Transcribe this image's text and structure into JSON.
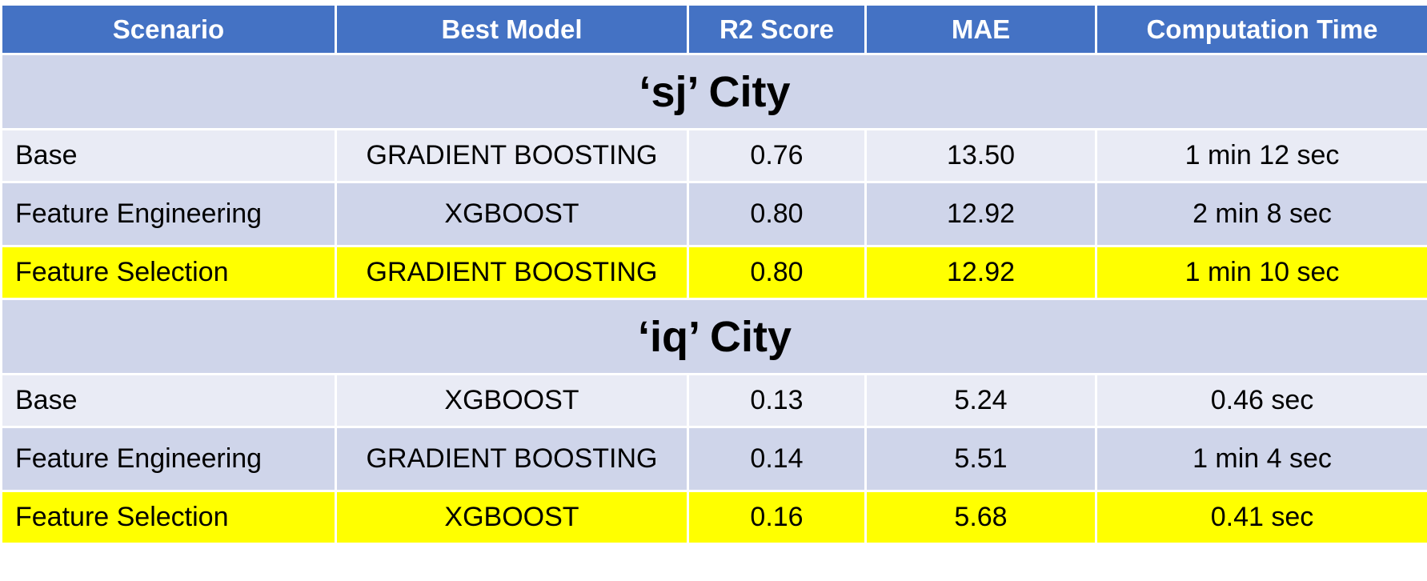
{
  "table": {
    "headers": [
      "Scenario",
      "Best Model",
      "R2 Score",
      "MAE",
      "Computation Time"
    ],
    "sections": [
      {
        "title": "‘sj’ City",
        "rows": [
          {
            "scenario": "Base",
            "model": "GRADIENT BOOSTING",
            "r2": "0.76",
            "mae": "13.50",
            "time": "1 min 12 sec"
          },
          {
            "scenario": "Feature Engineering",
            "model": "XGBOOST",
            "r2": "0.80",
            "mae": "12.92",
            "time": "2 min 8 sec"
          },
          {
            "scenario": "Feature Selection",
            "model": "GRADIENT BOOSTING",
            "r2": "0.80",
            "mae": "12.92",
            "time": "1 min 10 sec"
          }
        ]
      },
      {
        "title": "‘iq’ City",
        "rows": [
          {
            "scenario": "Base",
            "model": "XGBOOST",
            "r2": "0.13",
            "mae": "5.24",
            "time": "0.46 sec"
          },
          {
            "scenario": "Feature Engineering",
            "model": "GRADIENT BOOSTING",
            "r2": "0.14",
            "mae": "5.51",
            "time": "1 min 4 sec"
          },
          {
            "scenario": "Feature Selection",
            "model": "XGBOOST",
            "r2": "0.16",
            "mae": "5.68",
            "time": "0.41 sec"
          }
        ]
      }
    ]
  },
  "colors": {
    "header_bg": "#4472c4",
    "row_light": "#e9ebf5",
    "row_mid": "#cfd5ea",
    "highlight": "#ffff00"
  }
}
